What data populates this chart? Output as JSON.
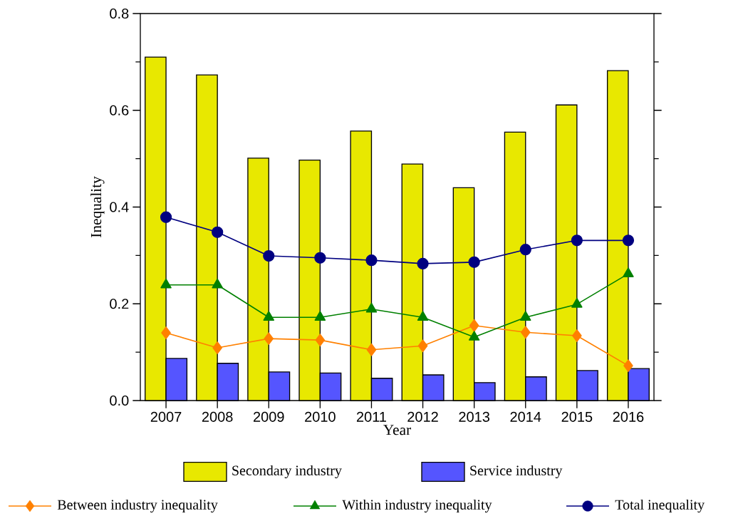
{
  "chart_data": {
    "type": "bar",
    "xlabel": "Year",
    "ylabel": "Inequality",
    "categories": [
      "2007",
      "2008",
      "2009",
      "2010",
      "2011",
      "2012",
      "2013",
      "2014",
      "2015",
      "2016"
    ],
    "series": [
      {
        "name": "Secondary industry",
        "color": "#e8e800",
        "values": [
          0.71,
          0.673,
          0.501,
          0.497,
          0.557,
          0.489,
          0.44,
          0.555,
          0.611,
          0.682
        ]
      },
      {
        "name": "Service industry",
        "color": "#5555ff",
        "values": [
          0.087,
          0.077,
          0.059,
          0.057,
          0.046,
          0.053,
          0.037,
          0.049,
          0.062,
          0.066
        ]
      },
      {
        "name": "Between industry inequality",
        "type": "line",
        "marker": "diamond",
        "color": "#ff8000",
        "values": [
          0.14,
          0.109,
          0.128,
          0.125,
          0.105,
          0.113,
          0.155,
          0.141,
          0.134,
          0.072
        ]
      },
      {
        "name": "Within industry inequality",
        "type": "line",
        "marker": "triangle",
        "color": "#008000",
        "values": [
          0.239,
          0.239,
          0.172,
          0.172,
          0.189,
          0.172,
          0.131,
          0.172,
          0.199,
          0.262
        ]
      },
      {
        "name": "Total inequality",
        "type": "line",
        "marker": "circle",
        "color": "#000080",
        "values": [
          0.379,
          0.348,
          0.299,
          0.295,
          0.29,
          0.283,
          0.286,
          0.312,
          0.331,
          0.331
        ]
      }
    ],
    "ylim": [
      0,
      0.8
    ],
    "yticks": [
      {
        "value": 0,
        "label": "0.0"
      },
      0.2,
      0.4,
      0.6,
      0.8
    ],
    "legend": "bottom"
  }
}
